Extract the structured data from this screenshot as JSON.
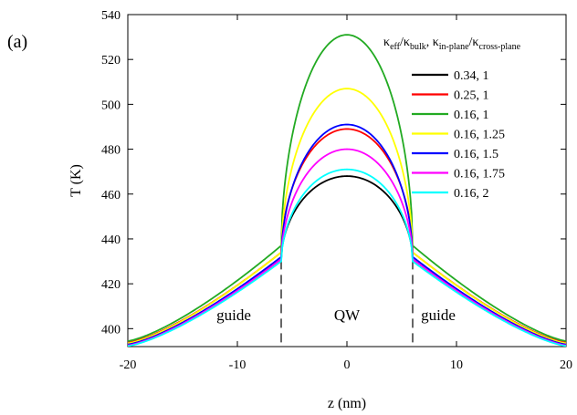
{
  "panel_label": "(a)",
  "chart_data": {
    "type": "line",
    "title": "",
    "xlabel": "z (nm)",
    "ylabel": "T (K)",
    "xlim": [
      -20,
      20
    ],
    "ylim": [
      392,
      540
    ],
    "xticks": [
      -20,
      -10,
      0,
      10,
      20
    ],
    "yticks": [
      400,
      420,
      440,
      460,
      480,
      500,
      520,
      540
    ],
    "legend": {
      "position": "top-right",
      "title_parts": [
        "κ",
        "eff",
        "/κ",
        "bulk",
        ", κ",
        "in-plane",
        "/κ",
        "cross-plane"
      ]
    },
    "annotations": {
      "left_region": "guide",
      "center_region": "QW",
      "right_region": "guide",
      "boundaries_z": [
        -6,
        6
      ]
    },
    "series": [
      {
        "name": "0.34, 1",
        "color": "#000000",
        "peak_T": 468,
        "edge_T": 431,
        "end_T": 393.0
      },
      {
        "name": "0.25, 1",
        "color": "#ff0000",
        "peak_T": 489,
        "edge_T": 434,
        "end_T": 393.8
      },
      {
        "name": "0.16, 1",
        "color": "#22aa22",
        "peak_T": 531,
        "edge_T": 437,
        "end_T": 394.5
      },
      {
        "name": "0.16, 1.25",
        "color": "#ffff00",
        "peak_T": 507,
        "edge_T": 434,
        "end_T": 393.5
      },
      {
        "name": "0.16, 1.5",
        "color": "#0000ff",
        "peak_T": 491,
        "edge_T": 432,
        "end_T": 393.0
      },
      {
        "name": "0.16, 1.75",
        "color": "#ff00ff",
        "peak_T": 480,
        "edge_T": 431,
        "end_T": 392.6
      },
      {
        "name": "0.16, 2",
        "color": "#00ffff",
        "peak_T": 471,
        "edge_T": 430,
        "end_T": 392.3
      }
    ]
  }
}
